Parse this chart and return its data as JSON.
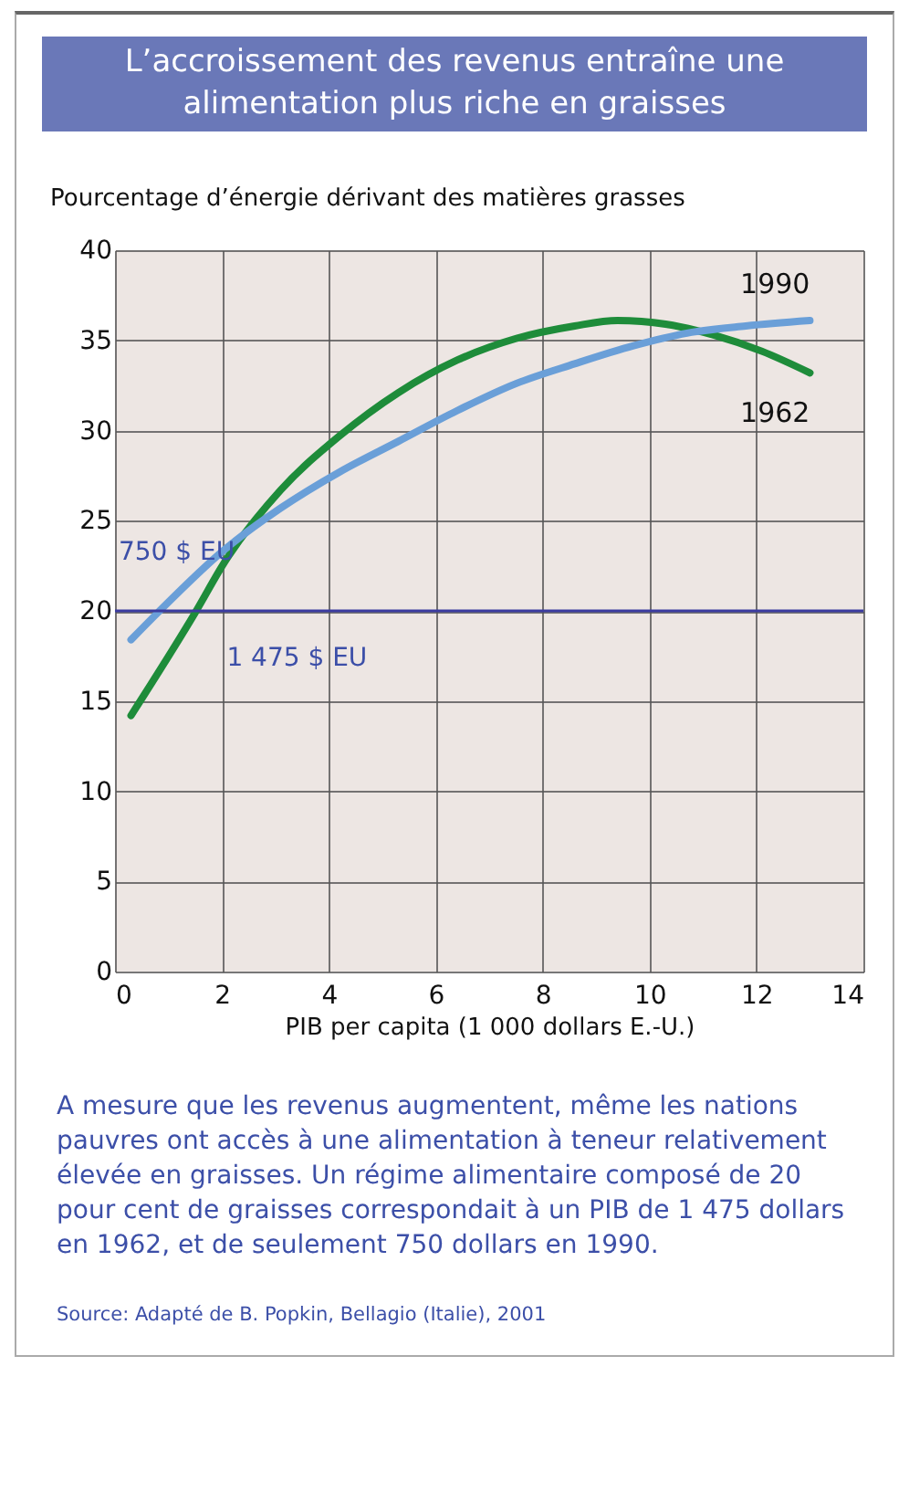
{
  "chart_data": {
    "type": "line",
    "title": "L’accroissement des revenus entraîne une alimentation plus riche en graisses",
    "ylabel": "Pourcentage d’énergie dérivant des matières grasses",
    "xlabel": "PIB per capita (1 000 dollars E.-U.)",
    "series": [
      {
        "name": "1962",
        "color": "#1e8c3a",
        "x": [
          0.3,
          1.5,
          2.05,
          3.1,
          4.2,
          5.3,
          6.4,
          7.5,
          8.6,
          9.4,
          10.3,
          11.2,
          12.1,
          13.0
        ],
        "values": [
          14.2,
          19.9,
          22.7,
          26.7,
          29.7,
          32.1,
          33.9,
          35.1,
          35.8,
          36.1,
          35.9,
          35.3,
          34.4,
          33.2
        ]
      },
      {
        "name": "1990",
        "color": "#6a9fd8",
        "x": [
          0.3,
          0.8,
          2.05,
          3.1,
          4.2,
          5.3,
          6.4,
          7.5,
          8.6,
          9.7,
          10.7,
          11.8,
          13.0
        ],
        "values": [
          18.4,
          19.9,
          23.4,
          25.7,
          27.7,
          29.4,
          31.1,
          32.6,
          33.7,
          34.7,
          35.4,
          35.8,
          36.1
        ]
      }
    ],
    "xlim": [
      0,
      14
    ],
    "xticks": [
      0,
      2,
      4,
      6,
      8,
      10,
      12,
      14
    ],
    "ylim": [
      0,
      40
    ],
    "yticks": [
      0,
      5,
      10,
      15,
      20,
      25,
      30,
      35,
      40
    ],
    "grid": true,
    "legend": false,
    "marker": "none",
    "line_style": "solid",
    "ref_lines": [
      {
        "axis": "y",
        "value": 20,
        "color": "#3b3ba0"
      }
    ],
    "annotations": [
      {
        "text": "750 $ EU",
        "x": 0.75,
        "y": 20
      },
      {
        "text": "1 475 $ EU",
        "x": 1.475,
        "y": 20
      },
      "A mesure que les revenus augmentent, même les nations pauvres ont accès à une alimentation à teneur relativement élevée en graisses. Un régime alimentaire composé de 20 pour cent de graisses correspondait à un PIB de 1 475 dollars en 1962, et de seulement 750 dollars en 1990.",
      "Source: Adapté de B. Popkin, Bellagio (Italie), 2001"
    ]
  }
}
